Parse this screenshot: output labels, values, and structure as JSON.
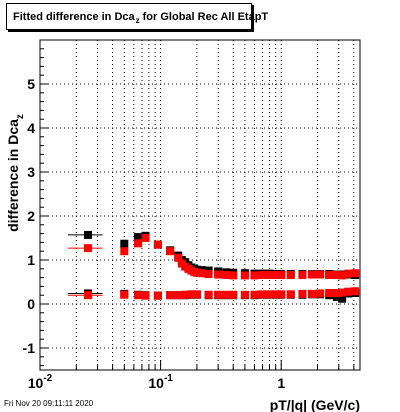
{
  "title_prefix": "Fitted difference in Dca",
  "title_sub": "z",
  "title_suffix": "for Global Rec All EtapT",
  "footer_timestamp": "Fri Nov 20 09:11:11 2020",
  "chart_data": {
    "type": "scatter",
    "title": "Fitted difference in Dca_z for Global Rec All EtapT",
    "xlabel": "pT/|q| (GeV/c)",
    "ylabel_main": "difference in Dca",
    "ylabel_sub": "z",
    "xscale": "log",
    "xlim": [
      0.01,
      4.5
    ],
    "ylim": [
      -1.5,
      6.0
    ],
    "grid": true,
    "x_ticks": [
      {
        "value": 0.01,
        "base": "10",
        "exp": "-2"
      },
      {
        "value": 0.1,
        "base": "10",
        "exp": "-1"
      },
      {
        "value": 1,
        "base": "1",
        "exp": ""
      }
    ],
    "y_ticks": [
      -1,
      0,
      1,
      2,
      3,
      4,
      5
    ],
    "series": [
      {
        "color": "#000000",
        "points": [
          {
            "x": 0.025,
            "y": 1.57,
            "xerr": [
              0.017,
              0.033
            ]
          },
          {
            "x": 0.05,
            "y": 1.37
          },
          {
            "x": 0.065,
            "y": 1.52
          },
          {
            "x": 0.075,
            "y": 1.55
          },
          {
            "x": 0.095,
            "y": 1.35
          },
          {
            "x": 0.12,
            "y": 1.22
          },
          {
            "x": 0.14,
            "y": 1.1
          },
          {
            "x": 0.15,
            "y": 1.0
          },
          {
            "x": 0.16,
            "y": 0.95
          },
          {
            "x": 0.17,
            "y": 0.88
          },
          {
            "x": 0.18,
            "y": 0.83
          },
          {
            "x": 0.19,
            "y": 0.8
          },
          {
            "x": 0.2,
            "y": 0.78
          },
          {
            "x": 0.22,
            "y": 0.77
          },
          {
            "x": 0.25,
            "y": 0.76
          },
          {
            "x": 0.3,
            "y": 0.74
          },
          {
            "x": 0.35,
            "y": 0.72
          },
          {
            "x": 0.4,
            "y": 0.71
          },
          {
            "x": 0.5,
            "y": 0.7
          },
          {
            "x": 0.6,
            "y": 0.69
          },
          {
            "x": 0.7,
            "y": 0.69
          },
          {
            "x": 0.8,
            "y": 0.69
          },
          {
            "x": 0.9,
            "y": 0.68
          },
          {
            "x": 1.0,
            "y": 0.68
          },
          {
            "x": 1.2,
            "y": 0.68
          },
          {
            "x": 1.5,
            "y": 0.68
          },
          {
            "x": 1.8,
            "y": 0.68
          },
          {
            "x": 2.1,
            "y": 0.68
          },
          {
            "x": 2.5,
            "y": 0.68
          },
          {
            "x": 2.9,
            "y": 0.67
          },
          {
            "x": 3.2,
            "y": 0.67
          },
          {
            "x": 3.6,
            "y": 0.67
          },
          {
            "x": 4.1,
            "y": 0.66
          }
        ]
      },
      {
        "color": "#ff0000",
        "points": [
          {
            "x": 0.025,
            "y": 1.27,
            "xerr": [
              0.017,
              0.033
            ]
          },
          {
            "x": 0.05,
            "y": 1.2
          },
          {
            "x": 0.065,
            "y": 1.38
          },
          {
            "x": 0.075,
            "y": 1.5
          },
          {
            "x": 0.095,
            "y": 1.35
          },
          {
            "x": 0.12,
            "y": 1.2
          },
          {
            "x": 0.14,
            "y": 1.05
          },
          {
            "x": 0.15,
            "y": 0.92
          },
          {
            "x": 0.16,
            "y": 0.85
          },
          {
            "x": 0.17,
            "y": 0.8
          },
          {
            "x": 0.18,
            "y": 0.76
          },
          {
            "x": 0.19,
            "y": 0.73
          },
          {
            "x": 0.2,
            "y": 0.71
          },
          {
            "x": 0.22,
            "y": 0.7
          },
          {
            "x": 0.25,
            "y": 0.68
          },
          {
            "x": 0.3,
            "y": 0.67
          },
          {
            "x": 0.35,
            "y": 0.66
          },
          {
            "x": 0.4,
            "y": 0.65
          },
          {
            "x": 0.5,
            "y": 0.65
          },
          {
            "x": 0.6,
            "y": 0.65
          },
          {
            "x": 0.7,
            "y": 0.66
          },
          {
            "x": 0.8,
            "y": 0.66
          },
          {
            "x": 0.9,
            "y": 0.66
          },
          {
            "x": 1.0,
            "y": 0.66
          },
          {
            "x": 1.2,
            "y": 0.66
          },
          {
            "x": 1.5,
            "y": 0.66
          },
          {
            "x": 1.8,
            "y": 0.67
          },
          {
            "x": 2.1,
            "y": 0.67
          },
          {
            "x": 2.5,
            "y": 0.66
          },
          {
            "x": 2.9,
            "y": 0.66
          },
          {
            "x": 3.2,
            "y": 0.65
          },
          {
            "x": 3.6,
            "y": 0.69
          },
          {
            "x": 4.1,
            "y": 0.7
          }
        ]
      },
      {
        "color": "#000000",
        "points": [
          {
            "x": 0.025,
            "y": 0.24,
            "xerr": [
              0.017,
              0.033
            ]
          },
          {
            "x": 0.05,
            "y": 0.23
          },
          {
            "x": 0.065,
            "y": 0.21
          },
          {
            "x": 0.075,
            "y": 0.2
          },
          {
            "x": 0.095,
            "y": 0.19
          },
          {
            "x": 0.12,
            "y": 0.2
          },
          {
            "x": 0.14,
            "y": 0.2
          },
          {
            "x": 0.16,
            "y": 0.2
          },
          {
            "x": 0.18,
            "y": 0.21
          },
          {
            "x": 0.2,
            "y": 0.21
          },
          {
            "x": 0.25,
            "y": 0.2
          },
          {
            "x": 0.3,
            "y": 0.2
          },
          {
            "x": 0.35,
            "y": 0.2
          },
          {
            "x": 0.4,
            "y": 0.2
          },
          {
            "x": 0.5,
            "y": 0.2
          },
          {
            "x": 0.6,
            "y": 0.2
          },
          {
            "x": 0.7,
            "y": 0.21
          },
          {
            "x": 0.8,
            "y": 0.21
          },
          {
            "x": 0.9,
            "y": 0.21
          },
          {
            "x": 1.0,
            "y": 0.21
          },
          {
            "x": 1.2,
            "y": 0.21
          },
          {
            "x": 1.5,
            "y": 0.21
          },
          {
            "x": 1.8,
            "y": 0.22
          },
          {
            "x": 2.1,
            "y": 0.22
          },
          {
            "x": 2.5,
            "y": 0.2
          },
          {
            "x": 2.9,
            "y": 0.16
          },
          {
            "x": 3.2,
            "y": 0.12
          },
          {
            "x": 3.6,
            "y": 0.24
          },
          {
            "x": 4.1,
            "y": 0.25
          }
        ]
      },
      {
        "color": "#ff0000",
        "points": [
          {
            "x": 0.025,
            "y": 0.2,
            "xerr": [
              0.017,
              0.033
            ]
          },
          {
            "x": 0.05,
            "y": 0.21
          },
          {
            "x": 0.065,
            "y": 0.2
          },
          {
            "x": 0.075,
            "y": 0.19
          },
          {
            "x": 0.095,
            "y": 0.19
          },
          {
            "x": 0.12,
            "y": 0.2
          },
          {
            "x": 0.14,
            "y": 0.2
          },
          {
            "x": 0.16,
            "y": 0.21
          },
          {
            "x": 0.18,
            "y": 0.22
          },
          {
            "x": 0.2,
            "y": 0.22
          },
          {
            "x": 0.25,
            "y": 0.21
          },
          {
            "x": 0.3,
            "y": 0.21
          },
          {
            "x": 0.35,
            "y": 0.21
          },
          {
            "x": 0.4,
            "y": 0.21
          },
          {
            "x": 0.5,
            "y": 0.21
          },
          {
            "x": 0.6,
            "y": 0.21
          },
          {
            "x": 0.7,
            "y": 0.22
          },
          {
            "x": 0.8,
            "y": 0.22
          },
          {
            "x": 0.9,
            "y": 0.22
          },
          {
            "x": 1.0,
            "y": 0.22
          },
          {
            "x": 1.2,
            "y": 0.22
          },
          {
            "x": 1.5,
            "y": 0.23
          },
          {
            "x": 1.8,
            "y": 0.23
          },
          {
            "x": 2.1,
            "y": 0.24
          },
          {
            "x": 2.5,
            "y": 0.25
          },
          {
            "x": 2.9,
            "y": 0.25
          },
          {
            "x": 3.2,
            "y": 0.26
          },
          {
            "x": 3.6,
            "y": 0.28
          },
          {
            "x": 4.1,
            "y": 0.29
          }
        ]
      }
    ]
  }
}
